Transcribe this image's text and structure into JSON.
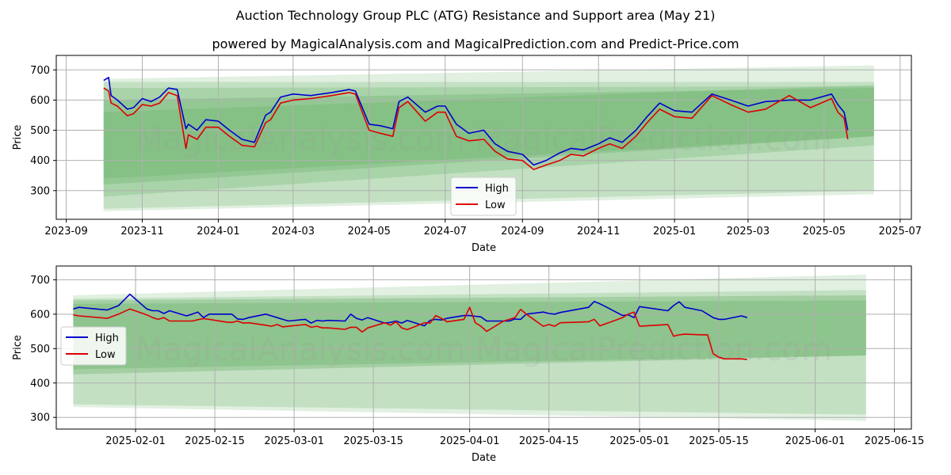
{
  "title": "Auction Technology Group PLC (ATG) Resistance and Support area (May 21)",
  "subtitle": "powered by MagicalAnalysis.com and MagicalPrediction.com and Predict-Price.com",
  "watermark": "MagicalAnalysis.com    MagicalPrediction.com",
  "colors": {
    "high": "#0000cc",
    "low": "#dd0000",
    "band": "#5aaa5a",
    "grid": "#b0b0b0"
  },
  "chart_data": [
    {
      "type": "line",
      "xlabel": "Date",
      "ylabel": "Price",
      "x_ticks": [
        "2023-09",
        "2023-11",
        "2024-01",
        "2024-03",
        "2024-05",
        "2024-07",
        "2024-09",
        "2024-11",
        "2025-01",
        "2025-03",
        "2025-05",
        "2025-07"
      ],
      "y_ticks": [
        300,
        400,
        500,
        600,
        700
      ],
      "xlim": [
        "2023-08-24",
        "2025-07-10"
      ],
      "ylim": [
        205,
        748
      ],
      "grid": true,
      "legend": {
        "placement": "bottom-center",
        "entries": [
          "High",
          "Low"
        ]
      },
      "bands": [
        {
          "x": [
            "2023-10-01",
            "2025-06-10"
          ],
          "upper": [
            670,
            715
          ],
          "lower": [
            232,
            288
          ],
          "opacity": 0.18
        },
        {
          "x": [
            "2023-10-01",
            "2025-06-10"
          ],
          "upper": [
            660,
            660
          ],
          "lower": [
            240,
            300
          ],
          "opacity": 0.22
        },
        {
          "x": [
            "2023-10-01",
            "2025-06-10"
          ],
          "upper": [
            640,
            645
          ],
          "lower": [
            280,
            450
          ],
          "opacity": 0.25
        },
        {
          "x": [
            "2023-10-01",
            "2025-06-10"
          ],
          "upper": [
            600,
            640
          ],
          "lower": [
            320,
            480
          ],
          "opacity": 0.28
        },
        {
          "x": [
            "2023-10-01",
            "2025-06-10"
          ],
          "upper": [
            560,
            650
          ],
          "lower": [
            340,
            480
          ],
          "opacity": 0.25
        }
      ],
      "series": [
        {
          "name": "High",
          "color": "#0000cc",
          "x": [
            "2023-10-01",
            "2023-10-05",
            "2023-10-07",
            "2023-10-12",
            "2023-10-20",
            "2023-10-25",
            "2023-11-01",
            "2023-11-08",
            "2023-11-15",
            "2023-11-22",
            "2023-11-29",
            "2023-12-06",
            "2023-12-08",
            "2023-12-15",
            "2023-12-22",
            "2024-01-01",
            "2024-01-10",
            "2024-01-20",
            "2024-01-30",
            "2024-02-08",
            "2024-02-12",
            "2024-02-20",
            "2024-03-01",
            "2024-03-15",
            "2024-04-01",
            "2024-04-15",
            "2024-04-20",
            "2024-05-01",
            "2024-05-10",
            "2024-05-20",
            "2024-05-25",
            "2024-06-01",
            "2024-06-15",
            "2024-06-25",
            "2024-07-01",
            "2024-07-10",
            "2024-07-20",
            "2024-08-01",
            "2024-08-10",
            "2024-08-20",
            "2024-09-01",
            "2024-09-10",
            "2024-09-20",
            "2024-10-01",
            "2024-10-10",
            "2024-10-20",
            "2024-11-01",
            "2024-11-10",
            "2024-11-20",
            "2024-12-01",
            "2024-12-10",
            "2024-12-20",
            "2025-01-01",
            "2025-01-15",
            "2025-01-31",
            "2025-02-15",
            "2025-03-01",
            "2025-03-15",
            "2025-04-03",
            "2025-04-20",
            "2025-05-07",
            "2025-05-12",
            "2025-05-17",
            "2025-05-20"
          ],
          "y": [
            665,
            675,
            615,
            600,
            570,
            575,
            605,
            595,
            610,
            640,
            635,
            505,
            520,
            500,
            535,
            530,
            500,
            470,
            460,
            550,
            560,
            610,
            620,
            615,
            625,
            635,
            630,
            520,
            515,
            505,
            595,
            610,
            560,
            580,
            580,
            520,
            490,
            500,
            455,
            430,
            420,
            385,
            400,
            425,
            440,
            435,
            455,
            475,
            460,
            500,
            545,
            590,
            565,
            560,
            620,
            600,
            580,
            595,
            600,
            600,
            620,
            585,
            560,
            500
          ]
        },
        {
          "name": "Low",
          "color": "#dd0000",
          "x": [
            "2023-10-01",
            "2023-10-05",
            "2023-10-07",
            "2023-10-12",
            "2023-10-20",
            "2023-10-25",
            "2023-11-01",
            "2023-11-08",
            "2023-11-15",
            "2023-11-22",
            "2023-11-29",
            "2023-12-06",
            "2023-12-08",
            "2023-12-15",
            "2023-12-22",
            "2024-01-01",
            "2024-01-10",
            "2024-01-20",
            "2024-01-30",
            "2024-02-08",
            "2024-02-12",
            "2024-02-20",
            "2024-03-01",
            "2024-03-15",
            "2024-04-01",
            "2024-04-15",
            "2024-04-20",
            "2024-05-01",
            "2024-05-10",
            "2024-05-20",
            "2024-05-25",
            "2024-06-01",
            "2024-06-15",
            "2024-06-25",
            "2024-07-01",
            "2024-07-10",
            "2024-07-20",
            "2024-08-01",
            "2024-08-10",
            "2024-08-20",
            "2024-09-01",
            "2024-09-10",
            "2024-09-20",
            "2024-10-01",
            "2024-10-10",
            "2024-10-20",
            "2024-11-01",
            "2024-11-10",
            "2024-11-20",
            "2024-12-01",
            "2024-12-10",
            "2024-12-20",
            "2025-01-01",
            "2025-01-15",
            "2025-01-31",
            "2025-02-15",
            "2025-03-01",
            "2025-03-15",
            "2025-04-03",
            "2025-04-20",
            "2025-05-07",
            "2025-05-12",
            "2025-05-17",
            "2025-05-20"
          ],
          "y": [
            640,
            630,
            590,
            580,
            548,
            555,
            585,
            580,
            590,
            625,
            615,
            440,
            485,
            470,
            510,
            510,
            480,
            450,
            445,
            525,
            535,
            590,
            600,
            605,
            615,
            625,
            620,
            500,
            490,
            480,
            575,
            595,
            530,
            560,
            560,
            480,
            465,
            470,
            430,
            405,
            400,
            370,
            385,
            400,
            420,
            415,
            440,
            455,
            440,
            480,
            525,
            570,
            545,
            540,
            615,
            585,
            560,
            570,
            615,
            575,
            605,
            560,
            540,
            470
          ]
        }
      ]
    },
    {
      "type": "line",
      "xlabel": "Date",
      "ylabel": "Price",
      "x_ticks": [
        "2025-02-01",
        "2025-02-15",
        "2025-03-01",
        "2025-03-15",
        "2025-04-01",
        "2025-04-15",
        "2025-05-01",
        "2025-05-15",
        "2025-06-01",
        "2025-06-15"
      ],
      "y_ticks": [
        300,
        400,
        500,
        600,
        700
      ],
      "xlim": [
        "2025-01-18",
        "2025-06-18"
      ],
      "ylim": [
        266,
        740
      ],
      "grid": true,
      "legend": {
        "placement": "center-left",
        "entries": [
          "High",
          "Low"
        ]
      },
      "bands": [
        {
          "x": [
            "2025-01-21",
            "2025-06-10"
          ],
          "upper": [
            655,
            715
          ],
          "lower": [
            330,
            290
          ],
          "opacity": 0.18
        },
        {
          "x": [
            "2025-01-21",
            "2025-06-10"
          ],
          "upper": [
            645,
            670
          ],
          "lower": [
            338,
            308
          ],
          "opacity": 0.22
        },
        {
          "x": [
            "2025-01-21",
            "2025-06-10"
          ],
          "upper": [
            640,
            655
          ],
          "lower": [
            425,
            480
          ],
          "opacity": 0.3
        },
        {
          "x": [
            "2025-01-21",
            "2025-06-10"
          ],
          "upper": [
            630,
            640
          ],
          "lower": [
            440,
            480
          ],
          "opacity": 0.28
        }
      ],
      "series": [
        {
          "name": "High",
          "color": "#0000cc",
          "x": [
            "2025-01-21",
            "2025-01-22",
            "2025-01-27",
            "2025-01-29",
            "2025-01-31",
            "2025-02-03",
            "2025-02-04",
            "2025-02-05",
            "2025-02-06",
            "2025-02-07",
            "2025-02-10",
            "2025-02-11",
            "2025-02-12",
            "2025-02-13",
            "2025-02-14",
            "2025-02-17",
            "2025-02-18",
            "2025-02-19",
            "2025-02-20",
            "2025-02-21",
            "2025-02-24",
            "2025-02-25",
            "2025-02-26",
            "2025-02-27",
            "2025-02-28",
            "2025-03-03",
            "2025-03-04",
            "2025-03-05",
            "2025-03-06",
            "2025-03-07",
            "2025-03-10",
            "2025-03-11",
            "2025-03-12",
            "2025-03-13",
            "2025-03-14",
            "2025-03-17",
            "2025-03-18",
            "2025-03-19",
            "2025-03-20",
            "2025-03-21",
            "2025-03-24",
            "2025-03-25",
            "2025-03-26",
            "2025-03-27",
            "2025-03-28",
            "2025-03-31",
            "2025-04-01",
            "2025-04-02",
            "2025-04-03",
            "2025-04-04",
            "2025-04-07",
            "2025-04-08",
            "2025-04-09",
            "2025-04-10",
            "2025-04-11",
            "2025-04-14",
            "2025-04-15",
            "2025-04-16",
            "2025-04-17",
            "2025-04-22",
            "2025-04-23",
            "2025-04-24",
            "2025-04-25",
            "2025-04-28",
            "2025-04-29",
            "2025-04-30",
            "2025-05-01",
            "2025-05-06",
            "2025-05-07",
            "2025-05-08",
            "2025-05-09",
            "2025-05-12",
            "2025-05-13",
            "2025-05-14",
            "2025-05-15",
            "2025-05-16",
            "2025-05-19",
            "2025-05-20"
          ],
          "y": [
            615,
            620,
            612,
            625,
            658,
            615,
            610,
            610,
            602,
            610,
            595,
            600,
            606,
            590,
            600,
            600,
            600,
            586,
            585,
            590,
            600,
            595,
            590,
            585,
            580,
            585,
            574,
            582,
            580,
            582,
            580,
            600,
            588,
            583,
            590,
            574,
            576,
            580,
            574,
            582,
            566,
            582,
            585,
            583,
            588,
            596,
            596,
            594,
            592,
            580,
            580,
            580,
            586,
            585,
            600,
            606,
            602,
            600,
            605,
            620,
            637,
            630,
            622,
            596,
            598,
            590,
            622,
            610,
            625,
            636,
            620,
            610,
            600,
            590,
            585,
            585,
            595,
            590
          ]
        },
        {
          "name": "Low",
          "color": "#dd0000",
          "x": [
            "2025-01-21",
            "2025-01-22",
            "2025-01-27",
            "2025-01-29",
            "2025-01-31",
            "2025-02-03",
            "2025-02-04",
            "2025-02-05",
            "2025-02-06",
            "2025-02-07",
            "2025-02-10",
            "2025-02-11",
            "2025-02-12",
            "2025-02-13",
            "2025-02-14",
            "2025-02-17",
            "2025-02-18",
            "2025-02-19",
            "2025-02-20",
            "2025-02-21",
            "2025-02-24",
            "2025-02-25",
            "2025-02-26",
            "2025-02-27",
            "2025-02-28",
            "2025-03-03",
            "2025-03-04",
            "2025-03-05",
            "2025-03-06",
            "2025-03-07",
            "2025-03-10",
            "2025-03-11",
            "2025-03-12",
            "2025-03-13",
            "2025-03-14",
            "2025-03-17",
            "2025-03-18",
            "2025-03-19",
            "2025-03-20",
            "2025-03-21",
            "2025-03-24",
            "2025-03-25",
            "2025-03-26",
            "2025-03-27",
            "2025-03-28",
            "2025-03-31",
            "2025-04-01",
            "2025-04-02",
            "2025-04-03",
            "2025-04-04",
            "2025-04-07",
            "2025-04-08",
            "2025-04-09",
            "2025-04-10",
            "2025-04-11",
            "2025-04-14",
            "2025-04-15",
            "2025-04-16",
            "2025-04-17",
            "2025-04-22",
            "2025-04-23",
            "2025-04-24",
            "2025-04-25",
            "2025-04-28",
            "2025-04-29",
            "2025-04-30",
            "2025-05-01",
            "2025-05-06",
            "2025-05-07",
            "2025-05-08",
            "2025-05-09",
            "2025-05-12",
            "2025-05-13",
            "2025-05-14",
            "2025-05-15",
            "2025-05-16",
            "2025-05-19",
            "2025-05-20"
          ],
          "y": [
            598,
            595,
            588,
            600,
            615,
            598,
            590,
            585,
            590,
            580,
            580,
            580,
            584,
            587,
            585,
            577,
            576,
            580,
            574,
            575,
            568,
            565,
            570,
            563,
            565,
            570,
            562,
            565,
            560,
            560,
            556,
            562,
            562,
            548,
            560,
            575,
            568,
            578,
            560,
            555,
            575,
            574,
            596,
            588,
            578,
            585,
            620,
            575,
            565,
            550,
            580,
            585,
            590,
            614,
            600,
            565,
            570,
            565,
            575,
            578,
            585,
            566,
            572,
            590,
            600,
            606,
            565,
            570,
            536,
            540,
            542,
            540,
            540,
            485,
            475,
            470,
            470,
            468
          ]
        }
      ]
    }
  ]
}
